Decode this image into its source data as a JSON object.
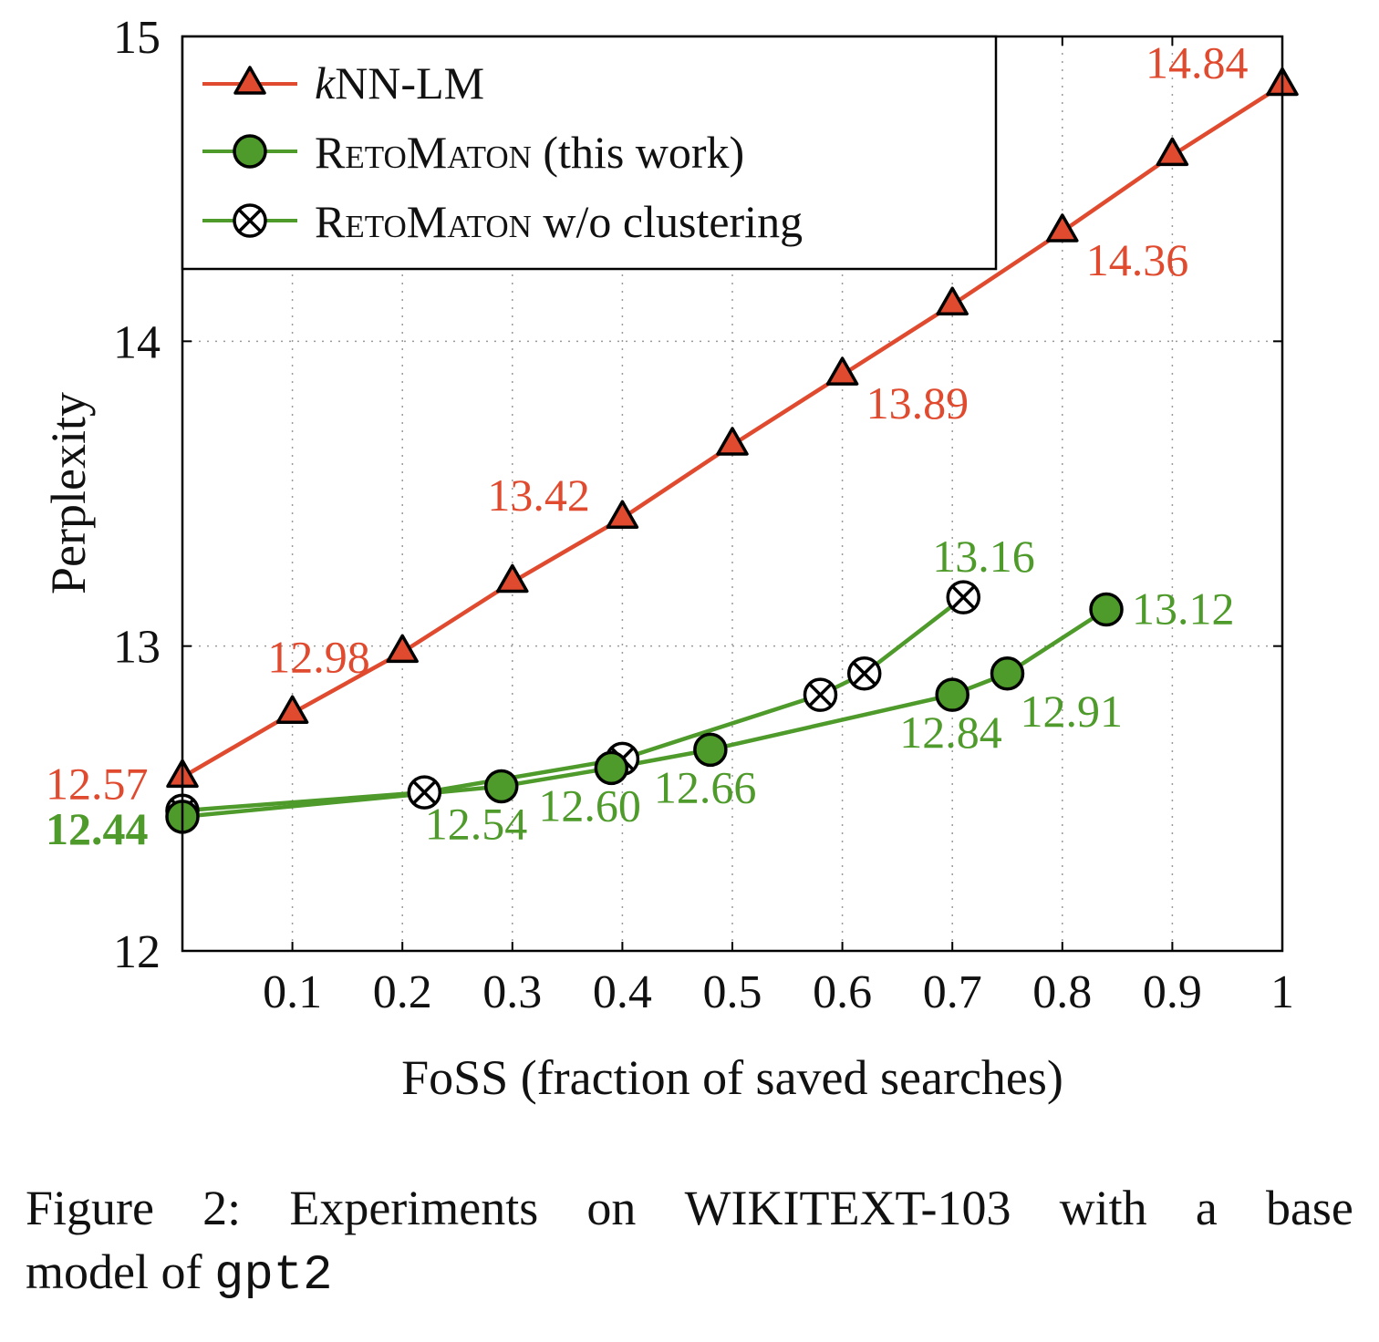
{
  "chart_data": {
    "type": "line",
    "xlabel": "FoSS (fraction of saved searches)",
    "ylabel": "Perplexity",
    "xlim": [
      0,
      1
    ],
    "ylim": [
      12,
      15
    ],
    "x_ticks": [
      "0.1",
      "0.2",
      "0.3",
      "0.4",
      "0.5",
      "0.6",
      "0.7",
      "0.8",
      "0.9",
      "1"
    ],
    "x_tick_values": [
      0.1,
      0.2,
      0.3,
      0.4,
      0.5,
      0.6,
      0.7,
      0.8,
      0.9,
      1
    ],
    "y_ticks": [
      "12",
      "13",
      "14",
      "15"
    ],
    "y_tick_values": [
      12,
      13,
      14,
      15
    ],
    "grid": true,
    "legend_position": "top-left",
    "series": [
      {
        "name_prefix": "k",
        "name_rest": "NN-LM",
        "color": "#e04a2f",
        "marker": "triangle",
        "x": [
          0,
          0.1,
          0.2,
          0.3,
          0.4,
          0.5,
          0.6,
          0.7,
          0.8,
          0.9,
          1.0
        ],
        "y": [
          12.57,
          12.78,
          12.98,
          13.21,
          13.42,
          13.66,
          13.89,
          14.12,
          14.36,
          14.61,
          14.84
        ],
        "labels": [
          {
            "index": 0,
            "text": "12.57"
          },
          {
            "index": 2,
            "text": "12.98"
          },
          {
            "index": 4,
            "text": "13.42"
          },
          {
            "index": 6,
            "text": "13.89"
          },
          {
            "index": 8,
            "text": "14.36"
          },
          {
            "index": 10,
            "text": "14.84"
          }
        ]
      },
      {
        "name_sc": "RetoMaton",
        "name_suffix": " (this work)",
        "color": "#4e9a2a",
        "marker": "circle",
        "x": [
          0,
          0.29,
          0.39,
          0.48,
          0.7,
          0.75,
          0.84
        ],
        "y": [
          12.44,
          12.54,
          12.6,
          12.66,
          12.84,
          12.91,
          13.12
        ],
        "labels": [
          {
            "index": 0,
            "text": "12.44"
          },
          {
            "index": 1,
            "text": "12.54"
          },
          {
            "index": 2,
            "text": "12.60"
          },
          {
            "index": 3,
            "text": "12.66"
          },
          {
            "index": 4,
            "text": "12.84"
          },
          {
            "index": 5,
            "text": "12.91"
          },
          {
            "index": 6,
            "text": "13.12"
          }
        ]
      },
      {
        "name_sc": "RetoMaton",
        "name_suffix": " w/o clustering",
        "color": "#4e9a2a",
        "marker": "circle-x",
        "x": [
          0,
          0.22,
          0.4,
          0.58,
          0.62,
          0.71
        ],
        "y": [
          12.46,
          12.52,
          12.63,
          12.84,
          12.91,
          13.16
        ],
        "labels": [
          {
            "index": 5,
            "text": "13.16"
          }
        ]
      }
    ]
  },
  "caption": {
    "line1": [
      "Figure",
      "2:",
      "Experiments",
      "on",
      "WIKITEXT-103",
      "with",
      "a",
      "base"
    ],
    "line2_text": "model of ",
    "line2_code": "gpt2"
  }
}
